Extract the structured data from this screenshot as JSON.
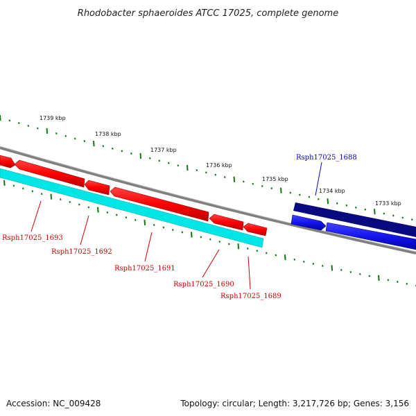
{
  "title": "Rhodobacter sphaeroides ATCC 17025, complete genome",
  "ticks": [
    {
      "label": "1739 kbp"
    },
    {
      "label": "1738 kbp"
    },
    {
      "label": "1737 kbp"
    },
    {
      "label": "1736 kbp"
    },
    {
      "label": "1735 kbp"
    },
    {
      "label": "1734 kbp"
    },
    {
      "label": "1733 kbp"
    }
  ],
  "genes": [
    {
      "label": "Rsph17025_1693",
      "color": "#cc0000"
    },
    {
      "label": "Rsph17025_1692",
      "color": "#cc0000"
    },
    {
      "label": "Rsph17025_1691",
      "color": "#cc0000"
    },
    {
      "label": "Rsph17025_1690",
      "color": "#cc0000"
    },
    {
      "label": "Rsph17025_1689",
      "color": "#cc0000"
    },
    {
      "label": "Rsph17025_1688",
      "color": "#0000cc"
    }
  ],
  "colors": {
    "backbone": "#808080",
    "reverse_strand_genes": "#ff0000",
    "reverse_strand_band": "#00e5e5",
    "forward_strand_genes": "#1515ee",
    "forward_strand_band": "#0a0a80",
    "ticks": "#117711"
  },
  "footer": {
    "accession": "Accession: NC_009428",
    "summary": "Topology: circular; Length: 3,217,726 bp; Genes: 3,156"
  }
}
